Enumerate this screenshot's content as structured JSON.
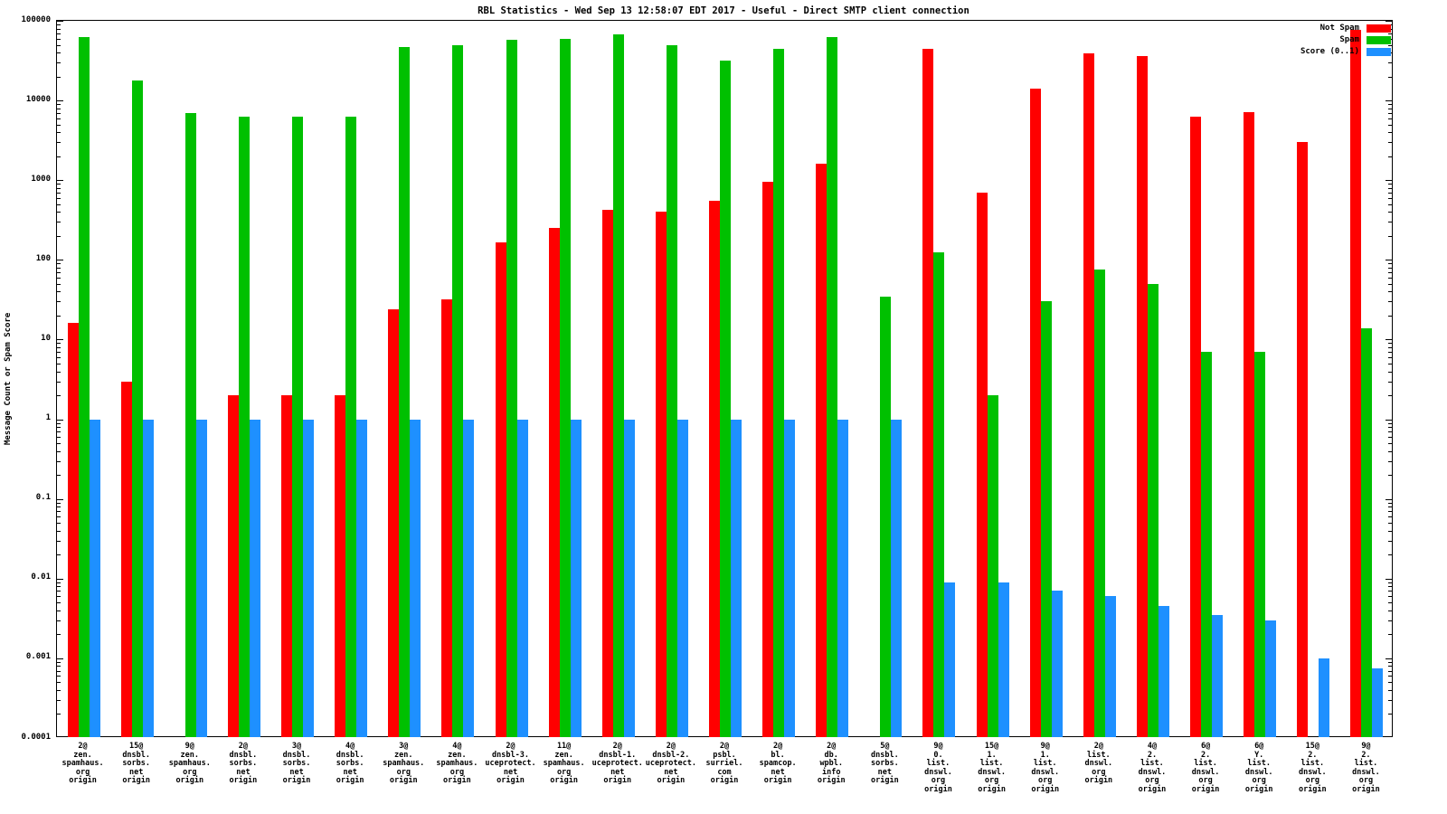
{
  "chart_data": {
    "type": "bar",
    "title": "RBL Statistics - Wed Sep 13 12:58:07 EDT 2017 - Useful - Direct SMTP client connection",
    "ylabel": "Message Count or Spam Score",
    "xlabel": "",
    "yscale": "log",
    "ylim": [
      0.0001,
      100000
    ],
    "grid": false,
    "legend_position": "top-right",
    "ytick_labels": [
      "100000",
      "10000",
      "1000",
      "100",
      "10",
      "1",
      "0.1",
      "0.01",
      "0.001",
      "0.0001"
    ],
    "categories": [
      [
        "2@",
        "zen.",
        "spamhaus.",
        "org",
        "origin"
      ],
      [
        "15@",
        "dnsbl.",
        "sorbs.",
        "net",
        "origin"
      ],
      [
        "9@",
        "zen.",
        "spamhaus.",
        "org",
        "origin"
      ],
      [
        "2@",
        "dnsbl.",
        "sorbs.",
        "net",
        "origin"
      ],
      [
        "3@",
        "dnsbl.",
        "sorbs.",
        "net",
        "origin"
      ],
      [
        "4@",
        "dnsbl.",
        "sorbs.",
        "net",
        "origin"
      ],
      [
        "3@",
        "zen.",
        "spamhaus.",
        "org",
        "origin"
      ],
      [
        "4@",
        "zen.",
        "spamhaus.",
        "org",
        "origin"
      ],
      [
        "2@",
        "dnsbl-3.",
        "uceprotect.",
        "net",
        "origin"
      ],
      [
        "11@",
        "zen.",
        "spamhaus.",
        "org",
        "origin"
      ],
      [
        "2@",
        "dnsbl-1.",
        "uceprotect.",
        "net",
        "origin"
      ],
      [
        "2@",
        "dnsbl-2.",
        "uceprotect.",
        "net",
        "origin"
      ],
      [
        "2@",
        "psbl.",
        "surriel.",
        "com",
        "origin"
      ],
      [
        "2@",
        "bl.",
        "spamcop.",
        "net",
        "origin"
      ],
      [
        "2@",
        "db.",
        "wpbl.",
        "info",
        "origin"
      ],
      [
        "5@",
        "dnsbl.",
        "sorbs.",
        "net",
        "origin"
      ],
      [
        "9@",
        "0.",
        "list.",
        "dnswl.",
        "org",
        "origin"
      ],
      [
        "15@",
        "1.",
        "list.",
        "dnswl.",
        "org",
        "origin"
      ],
      [
        "9@",
        "1.",
        "list.",
        "dnswl.",
        "org",
        "origin"
      ],
      [
        "2@",
        "list.",
        "dnswl.",
        "org",
        "origin"
      ],
      [
        "4@",
        "2.",
        "list.",
        "dnswl.",
        "org",
        "origin"
      ],
      [
        "6@",
        "2.",
        "list.",
        "dnswl.",
        "org",
        "origin"
      ],
      [
        "6@",
        "Y.",
        "list.",
        "dnswl.",
        "org",
        "origin"
      ],
      [
        "15@",
        "2.",
        "list.",
        "dnswl.",
        "org",
        "origin"
      ],
      [
        "9@",
        "2.",
        "list.",
        "dnswl.",
        "org",
        "origin"
      ]
    ],
    "series": [
      {
        "name": "Not Spam",
        "key": "not-spam",
        "color": "#ff0000",
        "values": [
          16,
          3,
          null,
          2,
          2,
          2,
          24,
          32,
          165,
          250,
          420,
          400,
          550,
          950,
          1600,
          null,
          45000,
          700,
          14000,
          39000,
          36000,
          6300,
          7200,
          3000,
          77000
        ]
      },
      {
        "name": "Spam",
        "key": "spam",
        "color": "#00c000",
        "values": [
          63000,
          18000,
          7000,
          6300,
          6300,
          6300,
          47000,
          49000,
          58000,
          60000,
          67000,
          49000,
          32000,
          45000,
          62000,
          35,
          125,
          2,
          30,
          75,
          50,
          7,
          7,
          null,
          14
        ]
      },
      {
        "name": "Score (0..1)",
        "key": "score",
        "color": "#1e90ff",
        "values": [
          1,
          1,
          1,
          1,
          1,
          1,
          1,
          1,
          1,
          1,
          1,
          1,
          1,
          1,
          1,
          1,
          0.009,
          0.009,
          0.007,
          0.006,
          0.0045,
          0.0035,
          0.003,
          0.001,
          0.00075
        ]
      }
    ]
  }
}
